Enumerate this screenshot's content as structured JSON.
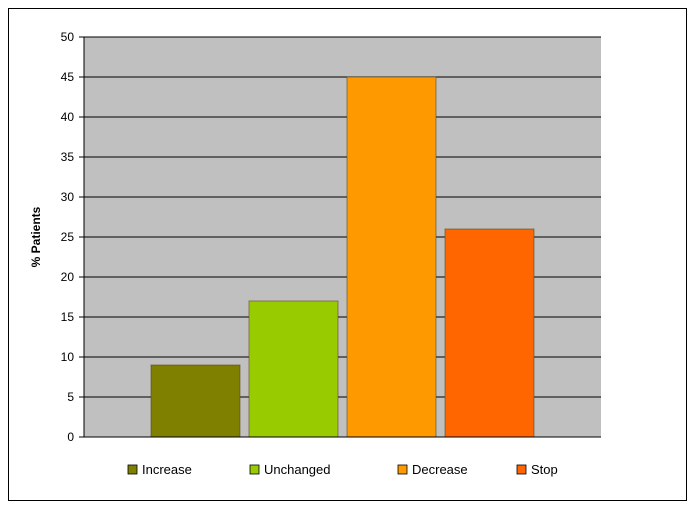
{
  "chart_data": {
    "type": "bar",
    "title": "",
    "xlabel": "",
    "ylabel": "% Patients",
    "ylim": [
      0,
      50
    ],
    "ytick_step": 5,
    "grid": true,
    "legend_position": "bottom",
    "plot_background": "#c0c0c0",
    "categories": [
      "Increase",
      "Unchanged",
      "Decrease",
      "Stop"
    ],
    "values": [
      9,
      17,
      45,
      26
    ],
    "colors": [
      "#808000",
      "#99cc00",
      "#ff9900",
      "#ff6600"
    ]
  }
}
